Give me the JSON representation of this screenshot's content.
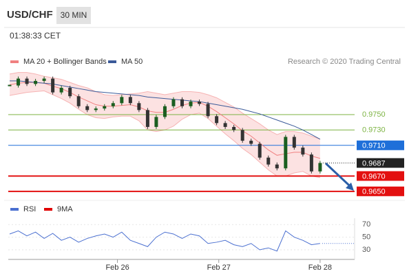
{
  "header": {
    "symbol": "USD/CHF",
    "timeframe": "30 MIN",
    "time": "01:38:33 CET"
  },
  "chart_data": [
    {
      "type": "candlestick",
      "source": "Research © 2020 Trading Central",
      "x": [
        0,
        2,
        4,
        6,
        8,
        10,
        12,
        14,
        16,
        18,
        20,
        22,
        24,
        26,
        28,
        30,
        32,
        34,
        36,
        38,
        40,
        42,
        44,
        46,
        48,
        50,
        52,
        54,
        56,
        58,
        60,
        62,
        64,
        66,
        68,
        70,
        72
      ],
      "xlim": [
        0,
        80
      ],
      "xticks": [
        {
          "value": 25,
          "label": "Feb 26"
        },
        {
          "value": 48.5,
          "label": "Feb 27"
        },
        {
          "value": 72,
          "label": "Feb 28"
        }
      ],
      "ylim": [
        0.964,
        0.981
      ],
      "close": [
        0.9788,
        0.9797,
        0.979,
        0.9794,
        0.9797,
        0.9779,
        0.9785,
        0.9774,
        0.9761,
        0.9756,
        0.9758,
        0.9761,
        0.9765,
        0.9773,
        0.9765,
        0.9756,
        0.9734,
        0.9747,
        0.9761,
        0.977,
        0.9761,
        0.9767,
        0.9764,
        0.9748,
        0.9739,
        0.9734,
        0.973,
        0.9716,
        0.9712,
        0.9694,
        0.9685,
        0.968,
        0.9721,
        0.9707,
        0.9698,
        0.9676,
        0.9687
      ],
      "up_color": "#1b5e20",
      "down_color": "#333333",
      "series": [
        {
          "name": "MA 20 + Bollinger Bands",
          "color": "#f08080",
          "values": [
            0.9789,
            0.9791,
            0.9792,
            0.9792,
            0.9791,
            0.9787,
            0.9784,
            0.9779,
            0.9773,
            0.9768,
            0.9763,
            0.9761,
            0.9761,
            0.9762,
            0.9763,
            0.976,
            0.9755,
            0.9753,
            0.9753,
            0.9757,
            0.9762,
            0.9765,
            0.9766,
            0.9761,
            0.9754,
            0.9746,
            0.9738,
            0.9729,
            0.9722,
            0.9713,
            0.9704,
            0.9697,
            0.9699,
            0.9701,
            0.9701,
            0.9696,
            0.9693
          ],
          "upper": [
            0.9803,
            0.9805,
            0.9805,
            0.9803,
            0.98,
            0.9798,
            0.9796,
            0.9792,
            0.9788,
            0.9785,
            0.978,
            0.9776,
            0.9775,
            0.9776,
            0.9777,
            0.9778,
            0.978,
            0.9778,
            0.9776,
            0.9778,
            0.978,
            0.978,
            0.9779,
            0.9776,
            0.9772,
            0.9766,
            0.976,
            0.9752,
            0.9745,
            0.9738,
            0.973,
            0.9724,
            0.9728,
            0.9728,
            0.9726,
            0.9722,
            0.9718
          ],
          "lower": [
            0.9775,
            0.9777,
            0.9779,
            0.978,
            0.9781,
            0.9776,
            0.9771,
            0.9765,
            0.9757,
            0.975,
            0.9746,
            0.9745,
            0.9747,
            0.9748,
            0.9748,
            0.9742,
            0.973,
            0.9728,
            0.973,
            0.9735,
            0.9744,
            0.975,
            0.9752,
            0.9745,
            0.9735,
            0.9725,
            0.9716,
            0.9706,
            0.9698,
            0.9688,
            0.9678,
            0.967,
            0.967,
            0.9674,
            0.9676,
            0.967,
            0.9668
          ]
        },
        {
          "name": "MA 50",
          "color": "#3a5a99",
          "values": [
            0.9794,
            0.9794,
            0.9793,
            0.9792,
            0.9791,
            0.979,
            0.9788,
            0.9786,
            0.9784,
            0.9782,
            0.978,
            0.9779,
            0.9778,
            0.9777,
            0.9776,
            0.9775,
            0.9773,
            0.9772,
            0.9771,
            0.977,
            0.9769,
            0.9768,
            0.9767,
            0.9765,
            0.9763,
            0.9761,
            0.9759,
            0.9757,
            0.9754,
            0.9751,
            0.9747,
            0.9743,
            0.9739,
            0.9735,
            0.973,
            0.9724,
            0.9718
          ]
        }
      ],
      "levels": [
        {
          "value": 0.975,
          "label": "0.9750",
          "color": "#7cb342",
          "boxed": false
        },
        {
          "value": 0.973,
          "label": "0.9730",
          "color": "#7cb342",
          "boxed": false
        },
        {
          "value": 0.971,
          "label": "0.9710",
          "color": "#1e6fd9",
          "boxed": true
        },
        {
          "value": 0.9687,
          "label": "0.9687",
          "color": "#222222",
          "boxed": true,
          "dotted": true
        },
        {
          "value": 0.967,
          "label": "0.9670",
          "color": "#e31010",
          "boxed": true,
          "emphasis": true
        },
        {
          "value": 0.965,
          "label": "0.9650",
          "color": "#e31010",
          "boxed": true,
          "emphasis": true
        }
      ]
    },
    {
      "type": "line",
      "ylim": [
        18,
        80
      ],
      "yticks": [
        70,
        50,
        30
      ],
      "xlim": [
        0,
        80
      ],
      "x": [
        0,
        2,
        4,
        6,
        8,
        10,
        12,
        14,
        16,
        18,
        20,
        22,
        24,
        26,
        28,
        30,
        32,
        34,
        36,
        38,
        40,
        42,
        44,
        46,
        48,
        50,
        52,
        54,
        56,
        58,
        60,
        62,
        64,
        66,
        68,
        70,
        72
      ],
      "series": [
        {
          "name": "RSI",
          "color": "#4a6fd0",
          "values": [
            55,
            60,
            52,
            58,
            48,
            56,
            45,
            50,
            42,
            48,
            52,
            55,
            50,
            58,
            45,
            40,
            35,
            50,
            58,
            55,
            48,
            55,
            52,
            40,
            42,
            45,
            38,
            35,
            40,
            30,
            33,
            28,
            60,
            50,
            45,
            38,
            40
          ]
        },
        {
          "name": "9MA",
          "color": "#e00000"
        }
      ]
    }
  ]
}
